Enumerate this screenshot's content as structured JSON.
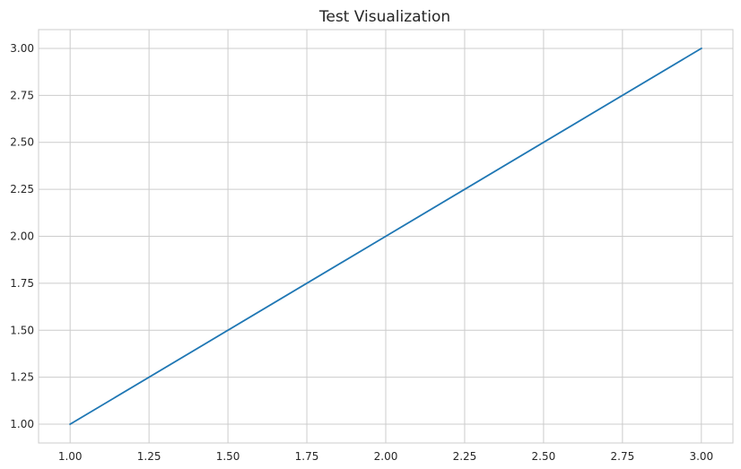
{
  "chart_data": {
    "type": "line",
    "title": "Test Visualization",
    "xlabel": "",
    "ylabel": "",
    "xlim": [
      0.9,
      3.1
    ],
    "ylim": [
      0.9,
      3.1
    ],
    "x_ticks": [
      "1.00",
      "1.25",
      "1.50",
      "1.75",
      "2.00",
      "2.25",
      "2.50",
      "2.75",
      "3.00"
    ],
    "y_ticks": [
      "1.00",
      "1.25",
      "1.50",
      "1.75",
      "2.00",
      "2.25",
      "2.50",
      "2.75",
      "3.00"
    ],
    "x_tick_values": [
      1.0,
      1.25,
      1.5,
      1.75,
      2.0,
      2.25,
      2.5,
      2.75,
      3.0
    ],
    "y_tick_values": [
      1.0,
      1.25,
      1.5,
      1.75,
      2.0,
      2.25,
      2.5,
      2.75,
      3.0
    ],
    "grid": true,
    "legend": "none",
    "series": [
      {
        "x": [
          1,
          2,
          3
        ],
        "y": [
          1,
          2,
          3
        ],
        "color": "#1f77b4"
      }
    ],
    "colors": {
      "grid": "#cccccc",
      "axes_edge": "#cccccc",
      "text": "#262626"
    }
  }
}
